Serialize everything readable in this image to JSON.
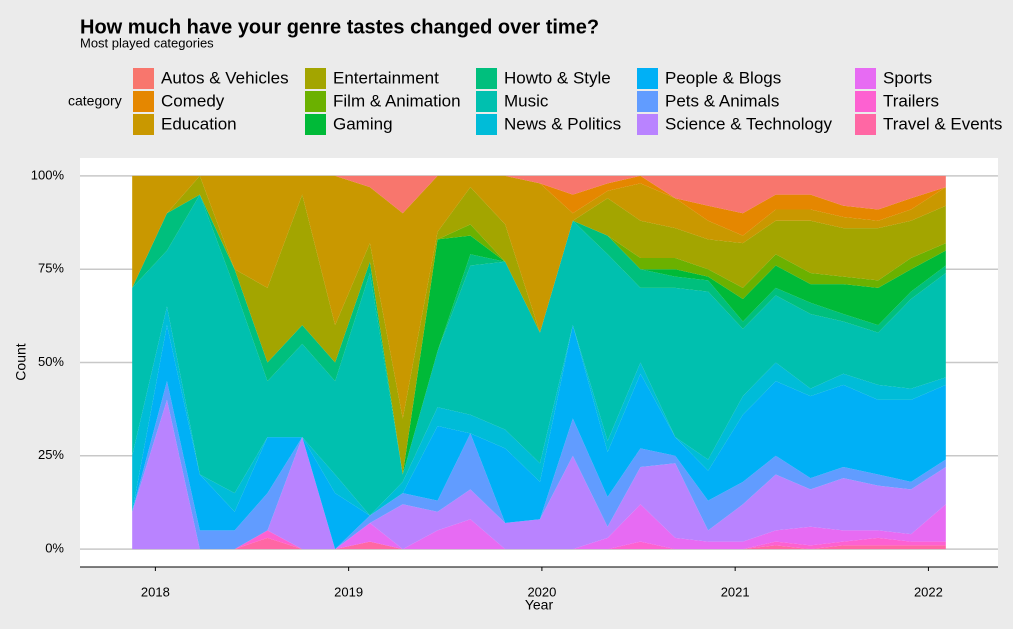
{
  "chart_data": {
    "type": "area",
    "stacked": "fill",
    "title": "How much have your genre tastes changed over time?",
    "subtitle": "Most played categories",
    "x_label": "Year",
    "y_label": "Count",
    "legend_title": "category",
    "legend_position": "top",
    "grid": true,
    "x": [
      2017.88,
      2018.06,
      2018.23,
      2018.41,
      2018.58,
      2018.76,
      2018.93,
      2019.11,
      2019.28,
      2019.46,
      2019.63,
      2019.81,
      2019.99,
      2020.16,
      2020.34,
      2020.51,
      2020.69,
      2020.86,
      2021.04,
      2021.21,
      2021.39,
      2021.56,
      2021.74,
      2021.91,
      2022.09
    ],
    "xlim": [
      2017.61,
      2022.36
    ],
    "xticks": [
      2018,
      2019,
      2020,
      2021,
      2022
    ],
    "ylim": [
      -4.8,
      104.8
    ],
    "yticks": [
      {
        "value": 0,
        "label": "0%"
      },
      {
        "value": 25,
        "label": "25%"
      },
      {
        "value": 50,
        "label": "50%"
      },
      {
        "value": 75,
        "label": "75%"
      },
      {
        "value": 100,
        "label": "100%"
      }
    ],
    "series": [
      {
        "name": "Autos & Vehicles",
        "color": "#F8766D",
        "values": [
          0,
          0,
          0,
          0,
          0,
          0,
          0,
          3,
          10,
          0,
          0,
          0,
          2,
          5,
          2,
          0,
          6,
          8,
          10,
          5,
          5,
          8,
          9,
          6,
          3
        ]
      },
      {
        "name": "Comedy",
        "color": "#E58700",
        "values": [
          0,
          0,
          0,
          0,
          0,
          0,
          0,
          0,
          0,
          0,
          0,
          0,
          0,
          5,
          2,
          2,
          0,
          4,
          6,
          4,
          4,
          3,
          3,
          3,
          0
        ]
      },
      {
        "name": "Education",
        "color": "#C99800",
        "values": [
          30,
          10,
          0,
          25,
          30,
          5,
          40,
          15,
          55,
          15,
          3,
          13,
          40,
          2,
          2,
          10,
          8,
          5,
          2,
          3,
          3,
          3,
          2,
          3,
          5
        ]
      },
      {
        "name": "Entertainment",
        "color": "#A3A500",
        "values": [
          0,
          0,
          5,
          0,
          20,
          35,
          10,
          5,
          15,
          2,
          10,
          10,
          0,
          0,
          10,
          10,
          8,
          8,
          12,
          9,
          14,
          13,
          14,
          10,
          10
        ]
      },
      {
        "name": "Film & Animation",
        "color": "#6BB100",
        "values": [
          0,
          0,
          0,
          0,
          0,
          0,
          0,
          0,
          0,
          0,
          3,
          0,
          0,
          0,
          0,
          3,
          3,
          2,
          3,
          3,
          3,
          2,
          2,
          3,
          2
        ]
      },
      {
        "name": "Gaming",
        "color": "#00BA38",
        "values": [
          0,
          0,
          0,
          0,
          0,
          0,
          0,
          0,
          0,
          30,
          5,
          0,
          0,
          0,
          0,
          0,
          2,
          1,
          6,
          6,
          5,
          8,
          10,
          6,
          4
        ]
      },
      {
        "name": "Howto & Style",
        "color": "#00BF7D",
        "values": [
          0,
          10,
          0,
          5,
          5,
          5,
          5,
          3,
          0,
          0,
          3,
          0,
          0,
          0,
          5,
          5,
          3,
          3,
          2,
          2,
          3,
          2,
          2,
          2,
          2
        ]
      },
      {
        "name": "Music",
        "color": "#00C0AF",
        "values": [
          45,
          15,
          75,
          55,
          15,
          25,
          25,
          65,
          2,
          15,
          40,
          45,
          35,
          28,
          50,
          20,
          40,
          45,
          18,
          18,
          20,
          14,
          14,
          24,
          28
        ]
      },
      {
        "name": "News & Politics",
        "color": "#00BCD8",
        "values": [
          15,
          5,
          0,
          5,
          0,
          0,
          5,
          0,
          3,
          5,
          5,
          5,
          5,
          0,
          3,
          3,
          0,
          3,
          5,
          5,
          2,
          3,
          4,
          3,
          2
        ]
      },
      {
        "name": "People & Blogs",
        "color": "#00B0F6",
        "values": [
          0,
          15,
          15,
          5,
          15,
          0,
          15,
          0,
          0,
          20,
          0,
          20,
          10,
          25,
          12,
          20,
          5,
          8,
          18,
          20,
          22,
          22,
          20,
          22,
          20
        ]
      },
      {
        "name": "Pets & Animals",
        "color": "#619CFF",
        "values": [
          0,
          5,
          5,
          5,
          10,
          0,
          0,
          2,
          3,
          3,
          15,
          0,
          0,
          10,
          8,
          5,
          2,
          8,
          6,
          5,
          3,
          3,
          3,
          2,
          2
        ]
      },
      {
        "name": "Science & Technology",
        "color": "#B983FF",
        "values": [
          10,
          40,
          0,
          0,
          0,
          30,
          0,
          0,
          12,
          5,
          8,
          7,
          8,
          25,
          3,
          10,
          20,
          3,
          10,
          15,
          10,
          14,
          12,
          12,
          10
        ]
      },
      {
        "name": "Sports",
        "color": "#E76BF3",
        "values": [
          0,
          0,
          0,
          0,
          0,
          0,
          0,
          5,
          0,
          5,
          8,
          0,
          0,
          0,
          3,
          10,
          3,
          2,
          2,
          3,
          5,
          3,
          2,
          2,
          10
        ]
      },
      {
        "name": "Trailers",
        "color": "#FD61D1",
        "values": [
          0,
          0,
          0,
          0,
          2,
          0,
          0,
          0,
          0,
          0,
          0,
          0,
          0,
          0,
          0,
          2,
          0,
          0,
          0,
          1,
          1,
          1,
          2,
          1,
          1
        ]
      },
      {
        "name": "Travel & Events",
        "color": "#FF67A4",
        "values": [
          0,
          0,
          0,
          0,
          3,
          0,
          0,
          2,
          0,
          0,
          0,
          0,
          0,
          0,
          0,
          0,
          0,
          0,
          0,
          1,
          0,
          1,
          1,
          1,
          1
        ]
      }
    ]
  }
}
